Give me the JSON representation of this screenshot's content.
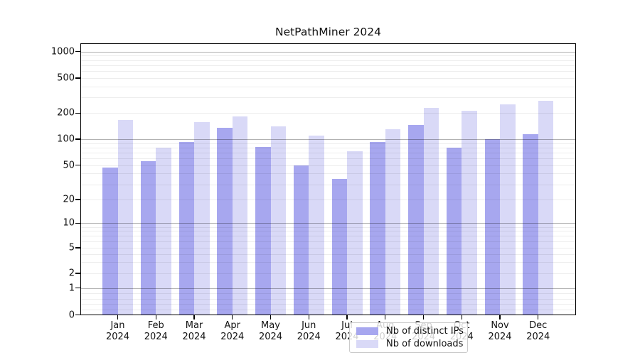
{
  "title": "NetPathMiner 2024",
  "chart_data": {
    "type": "bar",
    "title": "NetPathMiner 2024",
    "categories": [
      "Jan",
      "Feb",
      "Mar",
      "Apr",
      "May",
      "Jun",
      "Jul",
      "Aug",
      "Sep",
      "Oct",
      "Nov",
      "Dec"
    ],
    "year_label": "2024",
    "series": [
      {
        "name": "Nb of distinct IPs",
        "color": "#a7a7ef",
        "values": [
          47,
          56,
          92,
          135,
          81,
          50,
          35,
          92,
          147,
          80,
          100,
          114
        ]
      },
      {
        "name": "Nb of downloads",
        "color": "#d9d9f7",
        "values": [
          167,
          80,
          158,
          183,
          140,
          110,
          72,
          130,
          230,
          212,
          250,
          275
        ]
      }
    ],
    "yscale": "symlog",
    "yticks": [
      0,
      1,
      2,
      5,
      10,
      20,
      50,
      100,
      200,
      500,
      1000
    ],
    "ylim": [
      0,
      1250
    ],
    "xlabel": "",
    "ylabel": "",
    "grid": true,
    "legend_position": "lower-center"
  }
}
